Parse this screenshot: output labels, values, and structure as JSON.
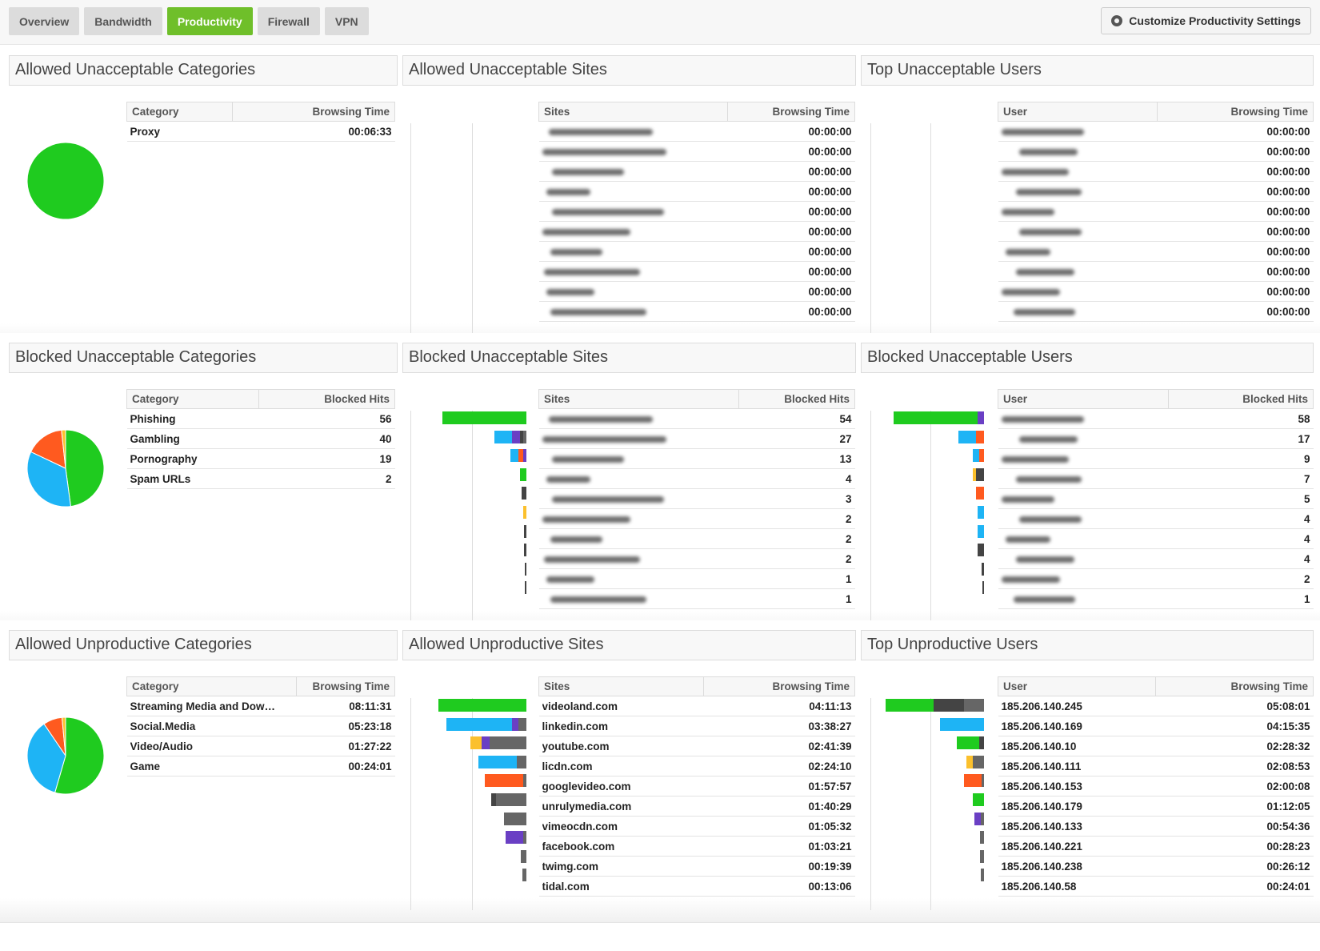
{
  "tabs": [
    "Overview",
    "Bandwidth",
    "Productivity",
    "Firewall",
    "VPN"
  ],
  "customize_label": "Customize Productivity Settings",
  "colors": {
    "green": "#1fcb1f",
    "blue": "#1eb4f5",
    "orange": "#ff5a1f",
    "yellow": "#fbc02d",
    "purple": "#6a3fc4",
    "dark": "#444444",
    "grey": "#666666"
  },
  "s1": {
    "cat_title": "Allowed Unacceptable Categories",
    "cat_h1": "Category",
    "cat_h2": "Browsing Time",
    "cats": [
      {
        "name": "Proxy",
        "val": "00:06:33"
      }
    ],
    "sites_title": "Allowed Unacceptable Sites",
    "sites_h1": "Sites",
    "sites_h2": "Browsing Time",
    "sites_vals": [
      "00:00:00",
      "00:00:00",
      "00:00:00",
      "00:00:00",
      "00:00:00",
      "00:00:00",
      "00:00:00",
      "00:00:00",
      "00:00:00",
      "00:00:00"
    ],
    "users_title": "Top Unacceptable Users",
    "users_h1": "User",
    "users_h2": "Browsing Time",
    "users_vals": [
      "00:00:00",
      "00:00:00",
      "00:00:00",
      "00:00:00",
      "00:00:00",
      "00:00:00",
      "00:00:00",
      "00:00:00",
      "00:00:00",
      "00:00:00"
    ]
  },
  "s2": {
    "cat_title": "Blocked Unacceptable Categories",
    "cat_h1": "Category",
    "cat_h2": "Blocked Hits",
    "cats": [
      {
        "name": "Phishing",
        "val": "56"
      },
      {
        "name": "Gambling",
        "val": "40"
      },
      {
        "name": "Pornography",
        "val": "19"
      },
      {
        "name": "Spam URLs",
        "val": "2"
      }
    ],
    "sites_title": "Blocked Unacceptable Sites",
    "sites_h1": "Sites",
    "sites_h2": "Blocked Hits",
    "sites_vals": [
      "54",
      "27",
      "13",
      "4",
      "3",
      "2",
      "2",
      "2",
      "1",
      "1"
    ],
    "users_title": "Blocked Unacceptable Users",
    "users_h1": "User",
    "users_h2": "Blocked Hits",
    "users_vals": [
      "58",
      "17",
      "9",
      "7",
      "5",
      "4",
      "4",
      "4",
      "2",
      "1"
    ]
  },
  "s3": {
    "cat_title": "Allowed Unproductive Categories",
    "cat_h1": "Category",
    "cat_h2": "Browsing Time",
    "cats": [
      {
        "name": "Streaming Media and Dow…",
        "val": "08:11:31"
      },
      {
        "name": "Social.Media",
        "val": "05:23:18"
      },
      {
        "name": "Video/Audio",
        "val": "01:27:22"
      },
      {
        "name": "Game",
        "val": "00:24:01"
      }
    ],
    "sites_title": "Allowed Unproductive Sites",
    "sites_h1": "Sites",
    "sites_h2": "Browsing Time",
    "sites": [
      {
        "name": "videoland.com",
        "val": "04:11:13"
      },
      {
        "name": "linkedin.com",
        "val": "03:38:27"
      },
      {
        "name": "youtube.com",
        "val": "02:41:39"
      },
      {
        "name": "licdn.com",
        "val": "02:24:10"
      },
      {
        "name": "googlevideo.com",
        "val": "01:57:57"
      },
      {
        "name": "unrulymedia.com",
        "val": "01:40:29"
      },
      {
        "name": "vimeocdn.com",
        "val": "01:05:32"
      },
      {
        "name": "facebook.com",
        "val": "01:03:21"
      },
      {
        "name": "twimg.com",
        "val": "00:19:39"
      },
      {
        "name": "tidal.com",
        "val": "00:13:06"
      }
    ],
    "users_title": "Top Unproductive Users",
    "users_h1": "User",
    "users_h2": "Browsing Time",
    "users": [
      {
        "name": "185.206.140.245",
        "val": "05:08:01"
      },
      {
        "name": "185.206.140.169",
        "val": "04:15:35"
      },
      {
        "name": "185.206.140.10",
        "val": "02:28:32"
      },
      {
        "name": "185.206.140.111",
        "val": "02:08:53"
      },
      {
        "name": "185.206.140.153",
        "val": "02:00:08"
      },
      {
        "name": "185.206.140.179",
        "val": "01:12:05"
      },
      {
        "name": "185.206.140.133",
        "val": "00:54:36"
      },
      {
        "name": "185.206.140.221",
        "val": "00:28:23"
      },
      {
        "name": "185.206.140.238",
        "val": "00:26:12"
      },
      {
        "name": "185.206.140.58",
        "val": "00:24:01"
      }
    ]
  }
}
